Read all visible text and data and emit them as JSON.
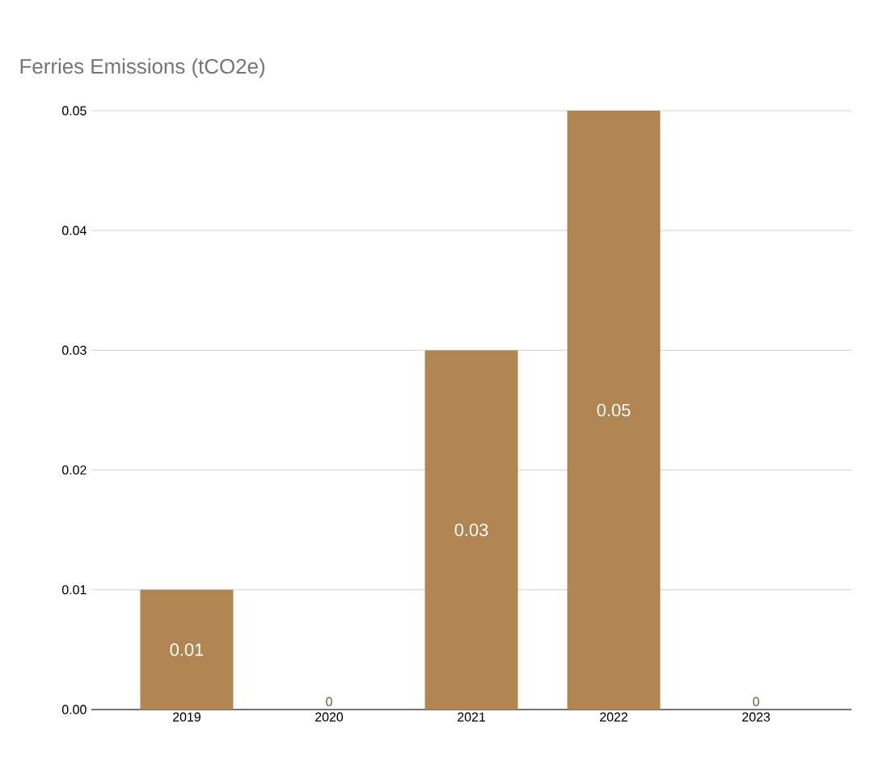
{
  "chart_data": {
    "type": "bar",
    "title": "Ferries Emissions (tCO2e)",
    "categories": [
      "2019",
      "2020",
      "2021",
      "2022",
      "2023"
    ],
    "values": [
      0.01,
      0,
      0.03,
      0.05,
      0
    ],
    "color": "#b08552",
    "ylim": [
      0,
      0.05
    ],
    "yticks": [
      {
        "value": 0,
        "label": "0.00"
      },
      {
        "value": 0.01,
        "label": "0.01"
      },
      {
        "value": 0.02,
        "label": "0.02"
      },
      {
        "value": 0.03,
        "label": "0.03"
      },
      {
        "value": 0.04,
        "label": "0.04"
      },
      {
        "value": 0.05,
        "label": "0.05"
      }
    ],
    "grid": "y",
    "data_labels": true,
    "value_labels": [
      "0.01",
      "0",
      "0.03",
      "0.05",
      "0"
    ]
  }
}
